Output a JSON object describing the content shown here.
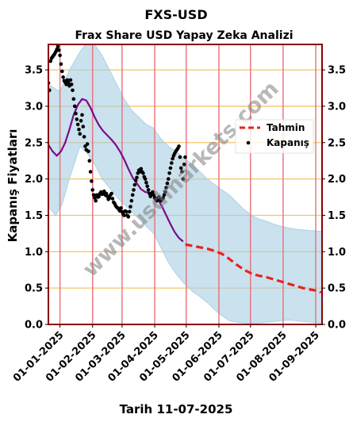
{
  "chart_data": {
    "type": "line",
    "title": "FXS-USD",
    "subtitle": "Frax Share USD Yapay Zeka Analizi",
    "xlabel": "Tarih 11-07-2025",
    "ylabel": "Kapanış Fiyatları",
    "watermark": "www.usdmarkets.com",
    "ylim": [
      0,
      3.85
    ],
    "yticks": [
      0.0,
      0.5,
      1.0,
      1.5,
      2.0,
      2.5,
      3.0,
      3.5
    ],
    "ytick_labels": [
      "0.0",
      "0.5",
      "1.0",
      "1.5",
      "2.0",
      "2.5",
      "3.0",
      "3.5"
    ],
    "xlim": [
      "2024-12-21",
      "2025-09-07"
    ],
    "xticks": [
      "2025-01-01",
      "2025-02-01",
      "2025-03-01",
      "2025-04-01",
      "2025-05-01",
      "2025-06-01",
      "2025-07-01",
      "2025-08-01",
      "2025-09-01"
    ],
    "xtick_labels": [
      "01-01-2025",
      "01-02-2025",
      "01-03-2025",
      "01-04-2025",
      "01-05-2025",
      "01-06-2025",
      "01-07-2025",
      "01-08-2025",
      "01-09-2025"
    ],
    "vlines": [
      "2025-01-01",
      "2025-02-01",
      "2025-03-01",
      "2025-04-01",
      "2025-05-01",
      "2025-06-01",
      "2025-07-01",
      "2025-08-01",
      "2025-09-01"
    ],
    "legend": {
      "position": "right",
      "entries": [
        {
          "label": "Tahmin",
          "color": "#e8231c",
          "style": "dashed"
        },
        {
          "label": "Kapanış",
          "color": "#000000",
          "style": "dots"
        }
      ]
    },
    "colors": {
      "band": "#a6cde3",
      "smooth": "#7b0a8c",
      "forecast": "#e8231c",
      "close": "#000000",
      "grid": "#f5c56a",
      "vline": "#e8707a",
      "frame": "#8b0000"
    },
    "series": [
      {
        "name": "Kapanış",
        "style": "dots",
        "points": [
          [
            "2024-12-21",
            3.32
          ],
          [
            "2024-12-22",
            3.22
          ],
          [
            "2024-12-23",
            3.62
          ],
          [
            "2024-12-24",
            3.66
          ],
          [
            "2024-12-25",
            3.68
          ],
          [
            "2024-12-26",
            3.7
          ],
          [
            "2024-12-27",
            3.72
          ],
          [
            "2024-12-28",
            3.75
          ],
          [
            "2024-12-29",
            3.78
          ],
          [
            "2024-12-30",
            3.82
          ],
          [
            "2024-12-31",
            3.77
          ],
          [
            "2025-01-01",
            3.7
          ],
          [
            "2025-01-02",
            3.58
          ],
          [
            "2025-01-03",
            3.48
          ],
          [
            "2025-01-04",
            3.4
          ],
          [
            "2025-01-05",
            3.35
          ],
          [
            "2025-01-06",
            3.33
          ],
          [
            "2025-01-07",
            3.3
          ],
          [
            "2025-01-08",
            3.36
          ],
          [
            "2025-01-09",
            3.32
          ],
          [
            "2025-01-10",
            3.28
          ],
          [
            "2025-01-11",
            3.36
          ],
          [
            "2025-01-12",
            3.3
          ],
          [
            "2025-01-13",
            3.22
          ],
          [
            "2025-01-14",
            3.1
          ],
          [
            "2025-01-15",
            3.0
          ],
          [
            "2025-01-16",
            2.9
          ],
          [
            "2025-01-17",
            2.82
          ],
          [
            "2025-01-18",
            2.75
          ],
          [
            "2025-01-19",
            2.68
          ],
          [
            "2025-01-20",
            2.62
          ],
          [
            "2025-01-21",
            2.8
          ],
          [
            "2025-01-22",
            2.88
          ],
          [
            "2025-01-23",
            2.72
          ],
          [
            "2025-01-24",
            2.58
          ],
          [
            "2025-01-25",
            2.45
          ],
          [
            "2025-01-26",
            2.4
          ],
          [
            "2025-01-27",
            2.48
          ],
          [
            "2025-01-28",
            2.38
          ],
          [
            "2025-01-29",
            2.25
          ],
          [
            "2025-01-30",
            2.1
          ],
          [
            "2025-01-31",
            1.97
          ],
          [
            "2025-02-01",
            1.85
          ],
          [
            "2025-02-02",
            1.78
          ],
          [
            "2025-02-03",
            1.74
          ],
          [
            "2025-02-04",
            1.7
          ],
          [
            "2025-02-05",
            1.78
          ],
          [
            "2025-02-06",
            1.75
          ],
          [
            "2025-02-07",
            1.76
          ],
          [
            "2025-02-08",
            1.8
          ],
          [
            "2025-02-09",
            1.82
          ],
          [
            "2025-02-10",
            1.79
          ],
          [
            "2025-02-11",
            1.8
          ],
          [
            "2025-02-12",
            1.83
          ],
          [
            "2025-02-13",
            1.78
          ],
          [
            "2025-02-14",
            1.8
          ],
          [
            "2025-02-15",
            1.76
          ],
          [
            "2025-02-16",
            1.72
          ],
          [
            "2025-02-17",
            1.74
          ],
          [
            "2025-02-18",
            1.78
          ],
          [
            "2025-02-19",
            1.8
          ],
          [
            "2025-02-20",
            1.73
          ],
          [
            "2025-02-21",
            1.68
          ],
          [
            "2025-02-22",
            1.66
          ],
          [
            "2025-02-23",
            1.63
          ],
          [
            "2025-02-24",
            1.61
          ],
          [
            "2025-02-25",
            1.6
          ],
          [
            "2025-02-26",
            1.58
          ],
          [
            "2025-02-27",
            1.56
          ],
          [
            "2025-02-28",
            1.6
          ],
          [
            "2025-03-01",
            1.55
          ],
          [
            "2025-03-02",
            1.52
          ],
          [
            "2025-03-03",
            1.5
          ],
          [
            "2025-03-04",
            1.56
          ],
          [
            "2025-03-05",
            1.55
          ],
          [
            "2025-03-06",
            1.5
          ],
          [
            "2025-03-07",
            1.48
          ],
          [
            "2025-03-08",
            1.55
          ],
          [
            "2025-03-09",
            1.62
          ],
          [
            "2025-03-10",
            1.7
          ],
          [
            "2025-03-11",
            1.78
          ],
          [
            "2025-03-12",
            1.85
          ],
          [
            "2025-03-13",
            1.92
          ],
          [
            "2025-03-14",
            1.98
          ],
          [
            "2025-03-15",
            2.02
          ],
          [
            "2025-03-16",
            2.08
          ],
          [
            "2025-03-17",
            2.12
          ],
          [
            "2025-03-18",
            2.1
          ],
          [
            "2025-03-19",
            2.14
          ],
          [
            "2025-03-20",
            2.1
          ],
          [
            "2025-03-21",
            2.08
          ],
          [
            "2025-03-22",
            2.03
          ],
          [
            "2025-03-23",
            2.0
          ],
          [
            "2025-03-24",
            1.95
          ],
          [
            "2025-03-25",
            1.9
          ],
          [
            "2025-03-26",
            1.85
          ],
          [
            "2025-03-27",
            1.8
          ],
          [
            "2025-03-28",
            1.76
          ],
          [
            "2025-03-29",
            1.8
          ],
          [
            "2025-03-30",
            1.82
          ],
          [
            "2025-03-31",
            1.78
          ],
          [
            "2025-04-01",
            1.74
          ],
          [
            "2025-04-02",
            1.72
          ],
          [
            "2025-04-03",
            1.7
          ],
          [
            "2025-04-04",
            1.72
          ],
          [
            "2025-04-05",
            1.75
          ],
          [
            "2025-04-06",
            1.72
          ],
          [
            "2025-04-07",
            1.7
          ],
          [
            "2025-04-08",
            1.72
          ],
          [
            "2025-04-09",
            1.74
          ],
          [
            "2025-04-10",
            1.78
          ],
          [
            "2025-04-11",
            1.82
          ],
          [
            "2025-04-12",
            1.88
          ],
          [
            "2025-04-13",
            1.94
          ],
          [
            "2025-04-14",
            2.0
          ],
          [
            "2025-04-15",
            2.08
          ],
          [
            "2025-04-16",
            2.15
          ],
          [
            "2025-04-17",
            2.22
          ],
          [
            "2025-04-18",
            2.28
          ],
          [
            "2025-04-19",
            2.32
          ],
          [
            "2025-04-20",
            2.35
          ],
          [
            "2025-04-21",
            2.38
          ],
          [
            "2025-04-22",
            2.4
          ],
          [
            "2025-04-23",
            2.42
          ],
          [
            "2025-04-24",
            2.45
          ],
          [
            "2025-04-25",
            2.3
          ],
          [
            "2025-04-26",
            2.15
          ],
          [
            "2025-04-27",
            2.1
          ],
          [
            "2025-04-28",
            2.0
          ],
          [
            "2025-04-29",
            2.2
          ],
          [
            "2025-04-30",
            2.3
          ]
        ]
      },
      {
        "name": "smoothed",
        "style": "line",
        "points": [
          [
            "2024-12-21",
            2.47
          ],
          [
            "2024-12-25",
            2.38
          ],
          [
            "2024-12-29",
            2.32
          ],
          [
            "2025-01-02",
            2.38
          ],
          [
            "2025-01-06",
            2.5
          ],
          [
            "2025-01-10",
            2.68
          ],
          [
            "2025-01-14",
            2.88
          ],
          [
            "2025-01-18",
            3.02
          ],
          [
            "2025-01-22",
            3.1
          ],
          [
            "2025-01-26",
            3.08
          ],
          [
            "2025-01-30",
            2.98
          ],
          [
            "2025-02-03",
            2.85
          ],
          [
            "2025-02-07",
            2.74
          ],
          [
            "2025-02-11",
            2.66
          ],
          [
            "2025-02-15",
            2.6
          ],
          [
            "2025-02-19",
            2.54
          ],
          [
            "2025-02-23",
            2.47
          ],
          [
            "2025-02-27",
            2.38
          ],
          [
            "2025-03-03",
            2.27
          ],
          [
            "2025-03-07",
            2.14
          ],
          [
            "2025-03-11",
            2.02
          ],
          [
            "2025-03-15",
            1.94
          ],
          [
            "2025-03-19",
            1.86
          ],
          [
            "2025-03-23",
            1.82
          ],
          [
            "2025-03-27",
            1.81
          ],
          [
            "2025-03-31",
            1.78
          ],
          [
            "2025-04-04",
            1.72
          ],
          [
            "2025-04-08",
            1.62
          ],
          [
            "2025-04-12",
            1.5
          ],
          [
            "2025-04-16",
            1.38
          ],
          [
            "2025-04-20",
            1.27
          ],
          [
            "2025-04-24",
            1.19
          ],
          [
            "2025-04-28",
            1.14
          ]
        ]
      },
      {
        "name": "Tahmin",
        "style": "dashed",
        "points": [
          [
            "2025-04-30",
            1.1
          ],
          [
            "2025-05-07",
            1.08
          ],
          [
            "2025-05-14",
            1.06
          ],
          [
            "2025-05-21",
            1.04
          ],
          [
            "2025-05-28",
            1.01
          ],
          [
            "2025-06-04",
            0.97
          ],
          [
            "2025-06-11",
            0.9
          ],
          [
            "2025-06-18",
            0.82
          ],
          [
            "2025-06-25",
            0.75
          ],
          [
            "2025-07-02",
            0.7
          ],
          [
            "2025-07-09",
            0.67
          ],
          [
            "2025-07-16",
            0.65
          ],
          [
            "2025-07-23",
            0.62
          ],
          [
            "2025-07-30",
            0.59
          ],
          [
            "2025-08-06",
            0.56
          ],
          [
            "2025-08-13",
            0.53
          ],
          [
            "2025-08-20",
            0.5
          ],
          [
            "2025-08-27",
            0.48
          ],
          [
            "2025-09-03",
            0.46
          ],
          [
            "2025-09-06",
            0.44
          ]
        ]
      }
    ],
    "band": {
      "upper": [
        [
          "2024-12-21",
          3.3
        ],
        [
          "2025-01-01",
          3.2
        ],
        [
          "2025-01-10",
          3.5
        ],
        [
          "2025-01-20",
          3.75
        ],
        [
          "2025-01-27",
          3.88
        ],
        [
          "2025-02-03",
          3.85
        ],
        [
          "2025-02-10",
          3.7
        ],
        [
          "2025-02-17",
          3.5
        ],
        [
          "2025-02-24",
          3.3
        ],
        [
          "2025-03-03",
          3.1
        ],
        [
          "2025-03-10",
          2.95
        ],
        [
          "2025-03-17",
          2.85
        ],
        [
          "2025-03-24",
          2.75
        ],
        [
          "2025-03-31",
          2.7
        ],
        [
          "2025-04-07",
          2.55
        ],
        [
          "2025-04-14",
          2.45
        ],
        [
          "2025-04-21",
          2.38
        ],
        [
          "2025-04-28",
          2.3
        ],
        [
          "2025-05-07",
          2.2
        ],
        [
          "2025-05-14",
          2.1
        ],
        [
          "2025-05-21",
          2.0
        ],
        [
          "2025-05-28",
          1.92
        ],
        [
          "2025-06-04",
          1.85
        ],
        [
          "2025-06-11",
          1.78
        ],
        [
          "2025-06-18",
          1.68
        ],
        [
          "2025-06-25",
          1.58
        ],
        [
          "2025-07-02",
          1.5
        ],
        [
          "2025-07-09",
          1.45
        ],
        [
          "2025-07-16",
          1.42
        ],
        [
          "2025-07-23",
          1.38
        ],
        [
          "2025-07-30",
          1.35
        ],
        [
          "2025-08-06",
          1.33
        ],
        [
          "2025-08-13",
          1.31
        ],
        [
          "2025-08-20",
          1.3
        ],
        [
          "2025-08-27",
          1.29
        ],
        [
          "2025-09-07",
          1.28
        ]
      ],
      "lower": [
        [
          "2025-09-07",
          0.02
        ],
        [
          "2025-08-27",
          0.03
        ],
        [
          "2025-08-20",
          0.04
        ],
        [
          "2025-08-13",
          0.05
        ],
        [
          "2025-08-06",
          0.06
        ],
        [
          "2025-07-30",
          0.05
        ],
        [
          "2025-07-23",
          0.04
        ],
        [
          "2025-07-16",
          0.03
        ],
        [
          "2025-07-09",
          0.02
        ],
        [
          "2025-07-02",
          0.02
        ],
        [
          "2025-06-25",
          0.02
        ],
        [
          "2025-06-18",
          0.03
        ],
        [
          "2025-06-11",
          0.05
        ],
        [
          "2025-06-04",
          0.12
        ],
        [
          "2025-05-28",
          0.2
        ],
        [
          "2025-05-21",
          0.3
        ],
        [
          "2025-05-14",
          0.38
        ],
        [
          "2025-05-07",
          0.45
        ],
        [
          "2025-04-28",
          0.58
        ],
        [
          "2025-04-21",
          0.7
        ],
        [
          "2025-04-14",
          0.85
        ],
        [
          "2025-04-07",
          1.05
        ],
        [
          "2025-03-31",
          1.25
        ],
        [
          "2025-03-24",
          1.35
        ],
        [
          "2025-03-17",
          1.45
        ],
        [
          "2025-03-10",
          1.55
        ],
        [
          "2025-03-03",
          1.65
        ],
        [
          "2025-02-24",
          1.75
        ],
        [
          "2025-02-17",
          1.88
        ],
        [
          "2025-02-10",
          2.0
        ],
        [
          "2025-02-03",
          2.2
        ],
        [
          "2025-01-27",
          2.35
        ],
        [
          "2025-01-20",
          2.45
        ],
        [
          "2025-01-10",
          2.0
        ],
        [
          "2025-01-03",
          1.65
        ],
        [
          "2024-12-28",
          1.5
        ],
        [
          "2024-12-21",
          1.62
        ]
      ]
    }
  }
}
